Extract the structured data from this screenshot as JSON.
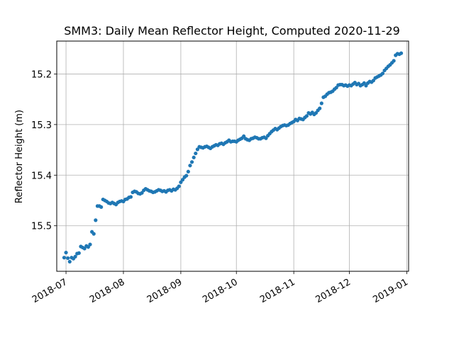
{
  "chart_data": {
    "type": "scatter",
    "title": "SMM3: Daily Mean Reflector Height, Computed 2020-11-29",
    "xlabel": "",
    "ylabel": "Reflector Height (m)",
    "y_inverted": true,
    "ylim": [
      15.59,
      15.135
    ],
    "xlim": [
      "2018-06-26",
      "2019-01-02"
    ],
    "grid": true,
    "marker_color": "#1f77b4",
    "x_ticks": [
      "2018-07-01",
      "2018-08-01",
      "2018-09-01",
      "2018-10-01",
      "2018-11-01",
      "2018-12-01",
      "2019-01-01"
    ],
    "x_tick_labels": [
      "2018-07",
      "2018-08",
      "2018-09",
      "2018-10",
      "2018-11",
      "2018-12",
      "2019-01"
    ],
    "y_ticks": [
      15.2,
      15.3,
      15.4,
      15.5
    ],
    "y_tick_labels": [
      "15.2",
      "15.3",
      "15.4",
      "15.5"
    ],
    "points": [
      [
        "2018-06-30",
        15.563
      ],
      [
        "2018-07-01",
        15.553
      ],
      [
        "2018-07-02",
        15.564
      ],
      [
        "2018-07-03",
        15.571
      ],
      [
        "2018-07-04",
        15.563
      ],
      [
        "2018-07-05",
        15.565
      ],
      [
        "2018-07-06",
        15.561
      ],
      [
        "2018-07-07",
        15.555
      ],
      [
        "2018-07-08",
        15.554
      ],
      [
        "2018-07-09",
        15.541
      ],
      [
        "2018-07-10",
        15.543
      ],
      [
        "2018-07-11",
        15.545
      ],
      [
        "2018-07-12",
        15.54
      ],
      [
        "2018-07-13",
        15.542
      ],
      [
        "2018-07-14",
        15.537
      ],
      [
        "2018-07-15",
        15.512
      ],
      [
        "2018-07-16",
        15.516
      ],
      [
        "2018-07-17",
        15.489
      ],
      [
        "2018-07-18",
        15.461
      ],
      [
        "2018-07-19",
        15.461
      ],
      [
        "2018-07-20",
        15.463
      ],
      [
        "2018-07-21",
        15.448
      ],
      [
        "2018-07-22",
        15.45
      ],
      [
        "2018-07-23",
        15.452
      ],
      [
        "2018-07-24",
        15.455
      ],
      [
        "2018-07-25",
        15.456
      ],
      [
        "2018-07-26",
        15.454
      ],
      [
        "2018-07-27",
        15.456
      ],
      [
        "2018-07-28",
        15.458
      ],
      [
        "2018-07-29",
        15.454
      ],
      [
        "2018-07-30",
        15.452
      ],
      [
        "2018-07-31",
        15.451
      ],
      [
        "2018-08-01",
        15.452
      ],
      [
        "2018-08-02",
        15.448
      ],
      [
        "2018-08-03",
        15.447
      ],
      [
        "2018-08-04",
        15.444
      ],
      [
        "2018-08-05",
        15.443
      ],
      [
        "2018-08-06",
        15.434
      ],
      [
        "2018-08-07",
        15.432
      ],
      [
        "2018-08-08",
        15.433
      ],
      [
        "2018-08-09",
        15.436
      ],
      [
        "2018-08-10",
        15.437
      ],
      [
        "2018-08-11",
        15.435
      ],
      [
        "2018-08-12",
        15.43
      ],
      [
        "2018-08-13",
        15.427
      ],
      [
        "2018-08-14",
        15.429
      ],
      [
        "2018-08-15",
        15.431
      ],
      [
        "2018-08-16",
        15.432
      ],
      [
        "2018-08-17",
        15.434
      ],
      [
        "2018-08-18",
        15.433
      ],
      [
        "2018-08-19",
        15.431
      ],
      [
        "2018-08-20",
        15.429
      ],
      [
        "2018-08-21",
        15.43
      ],
      [
        "2018-08-22",
        15.432
      ],
      [
        "2018-08-23",
        15.431
      ],
      [
        "2018-08-24",
        15.433
      ],
      [
        "2018-08-25",
        15.43
      ],
      [
        "2018-08-26",
        15.429
      ],
      [
        "2018-08-27",
        15.431
      ],
      [
        "2018-08-28",
        15.428
      ],
      [
        "2018-08-29",
        15.429
      ],
      [
        "2018-08-30",
        15.426
      ],
      [
        "2018-08-31",
        15.422
      ],
      [
        "2018-09-01",
        15.414
      ],
      [
        "2018-09-02",
        15.409
      ],
      [
        "2018-09-03",
        15.404
      ],
      [
        "2018-09-04",
        15.401
      ],
      [
        "2018-09-05",
        15.393
      ],
      [
        "2018-09-06",
        15.381
      ],
      [
        "2018-09-07",
        15.374
      ],
      [
        "2018-09-08",
        15.365
      ],
      [
        "2018-09-09",
        15.357
      ],
      [
        "2018-09-10",
        15.349
      ],
      [
        "2018-09-11",
        15.344
      ],
      [
        "2018-09-12",
        15.345
      ],
      [
        "2018-09-13",
        15.346
      ],
      [
        "2018-09-14",
        15.344
      ],
      [
        "2018-09-15",
        15.343
      ],
      [
        "2018-09-16",
        15.345
      ],
      [
        "2018-09-17",
        15.347
      ],
      [
        "2018-09-18",
        15.344
      ],
      [
        "2018-09-19",
        15.342
      ],
      [
        "2018-09-20",
        15.34
      ],
      [
        "2018-09-21",
        15.341
      ],
      [
        "2018-09-22",
        15.338
      ],
      [
        "2018-09-23",
        15.337
      ],
      [
        "2018-09-24",
        15.339
      ],
      [
        "2018-09-25",
        15.336
      ],
      [
        "2018-09-26",
        15.334
      ],
      [
        "2018-09-27",
        15.331
      ],
      [
        "2018-09-28",
        15.334
      ],
      [
        "2018-09-29",
        15.333
      ],
      [
        "2018-09-30",
        15.333
      ],
      [
        "2018-10-01",
        15.334
      ],
      [
        "2018-10-02",
        15.331
      ],
      [
        "2018-10-03",
        15.329
      ],
      [
        "2018-10-04",
        15.327
      ],
      [
        "2018-10-05",
        15.323
      ],
      [
        "2018-10-06",
        15.328
      ],
      [
        "2018-10-07",
        15.33
      ],
      [
        "2018-10-08",
        15.331
      ],
      [
        "2018-10-09",
        15.328
      ],
      [
        "2018-10-10",
        15.327
      ],
      [
        "2018-10-11",
        15.325
      ],
      [
        "2018-10-12",
        15.326
      ],
      [
        "2018-10-13",
        15.328
      ],
      [
        "2018-10-14",
        15.328
      ],
      [
        "2018-10-15",
        15.326
      ],
      [
        "2018-10-16",
        15.325
      ],
      [
        "2018-10-17",
        15.327
      ],
      [
        "2018-10-18",
        15.322
      ],
      [
        "2018-10-19",
        15.318
      ],
      [
        "2018-10-20",
        15.314
      ],
      [
        "2018-10-21",
        15.311
      ],
      [
        "2018-10-22",
        15.308
      ],
      [
        "2018-10-23",
        15.31
      ],
      [
        "2018-10-24",
        15.307
      ],
      [
        "2018-10-25",
        15.304
      ],
      [
        "2018-10-26",
        15.302
      ],
      [
        "2018-10-27",
        15.301
      ],
      [
        "2018-10-28",
        15.302
      ],
      [
        "2018-10-29",
        15.301
      ],
      [
        "2018-10-30",
        15.298
      ],
      [
        "2018-10-31",
        15.296
      ],
      [
        "2018-11-01",
        15.294
      ],
      [
        "2018-11-02",
        15.29
      ],
      [
        "2018-11-03",
        15.292
      ],
      [
        "2018-11-04",
        15.288
      ],
      [
        "2018-11-05",
        15.289
      ],
      [
        "2018-11-06",
        15.29
      ],
      [
        "2018-11-07",
        15.286
      ],
      [
        "2018-11-08",
        15.283
      ],
      [
        "2018-11-09",
        15.277
      ],
      [
        "2018-11-10",
        15.279
      ],
      [
        "2018-11-11",
        15.276
      ],
      [
        "2018-11-12",
        15.28
      ],
      [
        "2018-11-13",
        15.277
      ],
      [
        "2018-11-14",
        15.272
      ],
      [
        "2018-11-15",
        15.268
      ],
      [
        "2018-11-16",
        15.258
      ],
      [
        "2018-11-17",
        15.246
      ],
      [
        "2018-11-18",
        15.244
      ],
      [
        "2018-11-19",
        15.24
      ],
      [
        "2018-11-20",
        15.237
      ],
      [
        "2018-11-21",
        15.236
      ],
      [
        "2018-11-22",
        15.234
      ],
      [
        "2018-11-23",
        15.23
      ],
      [
        "2018-11-24",
        15.227
      ],
      [
        "2018-11-25",
        15.222
      ],
      [
        "2018-11-26",
        15.221
      ],
      [
        "2018-11-27",
        15.221
      ],
      [
        "2018-11-28",
        15.223
      ],
      [
        "2018-11-29",
        15.222
      ],
      [
        "2018-11-30",
        15.224
      ],
      [
        "2018-12-01",
        15.222
      ],
      [
        "2018-12-02",
        15.223
      ],
      [
        "2018-12-03",
        15.22
      ],
      [
        "2018-12-04",
        15.217
      ],
      [
        "2018-12-05",
        15.221
      ],
      [
        "2018-12-06",
        15.219
      ],
      [
        "2018-12-07",
        15.223
      ],
      [
        "2018-12-08",
        15.221
      ],
      [
        "2018-12-09",
        15.218
      ],
      [
        "2018-12-10",
        15.223
      ],
      [
        "2018-12-11",
        15.218
      ],
      [
        "2018-12-12",
        15.215
      ],
      [
        "2018-12-13",
        15.216
      ],
      [
        "2018-12-14",
        15.213
      ],
      [
        "2018-12-15",
        15.208
      ],
      [
        "2018-12-16",
        15.206
      ],
      [
        "2018-12-17",
        15.204
      ],
      [
        "2018-12-18",
        15.202
      ],
      [
        "2018-12-19",
        15.199
      ],
      [
        "2018-12-20",
        15.193
      ],
      [
        "2018-12-21",
        15.189
      ],
      [
        "2018-12-22",
        15.185
      ],
      [
        "2018-12-23",
        15.182
      ],
      [
        "2018-12-24",
        15.178
      ],
      [
        "2018-12-25",
        15.174
      ],
      [
        "2018-12-26",
        15.163
      ],
      [
        "2018-12-27",
        15.16
      ],
      [
        "2018-12-28",
        15.161
      ],
      [
        "2018-12-29",
        15.159
      ]
    ]
  }
}
